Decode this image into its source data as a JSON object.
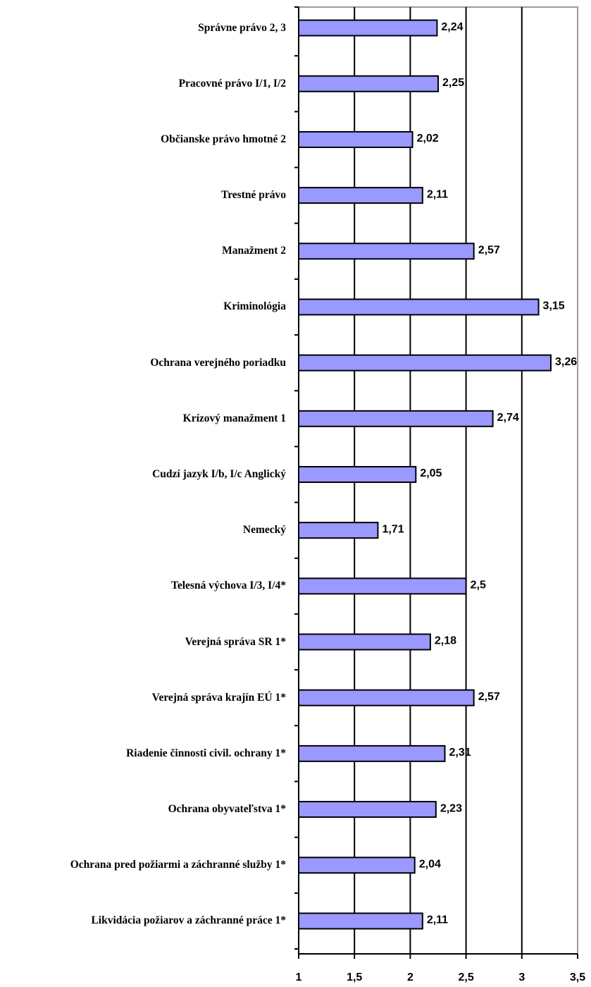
{
  "chart_data": {
    "type": "barh",
    "categories": [
      "Správne právo 2, 3",
      "Pracovné právo I/1, I/2",
      "Občianske právo hmotné 2",
      "Trestné právo",
      "Manažment 2",
      "Kriminológia",
      "Ochrana verejného poriadku",
      "Krízový manažment 1",
      "Cudzí jazyk I/b, I/c Anglický",
      "Nemecký",
      "Telesná výchova I/3, I/4*",
      "Verejná správa SR 1*",
      "Verejná správa krajín EÚ 1*",
      "Riadenie činnosti civil. ochrany 1*",
      "Ochrana obyvateľstva 1*",
      "Ochrana pred požiarmi a záchranné služby 1*",
      "Likvidácia požiarov a záchranné práce 1*"
    ],
    "values": [
      2.24,
      2.25,
      2.02,
      2.11,
      2.57,
      3.15,
      3.26,
      2.74,
      2.05,
      1.71,
      2.5,
      2.18,
      2.57,
      2.31,
      2.23,
      2.04,
      2.11
    ],
    "value_labels": [
      "2,24",
      "2,25",
      "2,02",
      "2,11",
      "2,57",
      "3,15",
      "3,26",
      "2,74",
      "2,05",
      "1,71",
      "2,5",
      "2,18",
      "2,57",
      "2,31",
      "2,23",
      "2,04",
      "2,11"
    ],
    "color": "#9999ff",
    "xlim": [
      1,
      3.5
    ],
    "xticks": [
      1,
      {
        "value": 1.5,
        "label": "1,5"
      },
      2,
      {
        "value": 2.5,
        "label": "2,5"
      },
      3,
      {
        "value": 3.5,
        "label": "3,5"
      }
    ],
    "grid": true
  }
}
